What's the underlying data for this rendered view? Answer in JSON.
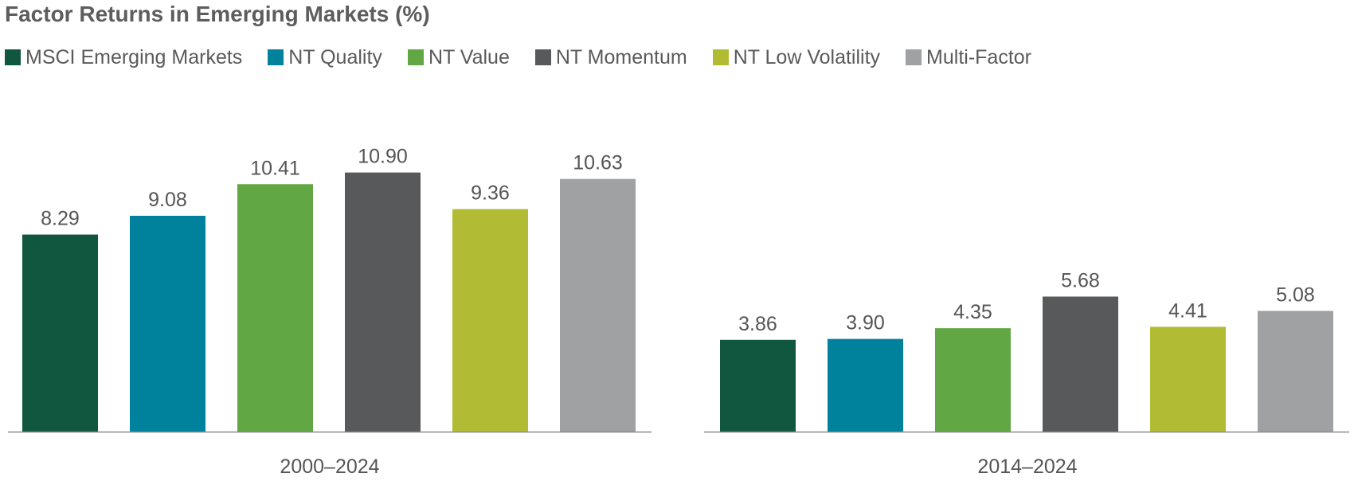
{
  "title": "Factor Returns in Emerging Markets (%)",
  "legend": [
    {
      "label": "MSCI Emerging Markets",
      "color": "#11573f"
    },
    {
      "label": "NT Quality",
      "color": "#00829d"
    },
    {
      "label": "NT Value",
      "color": "#61a844"
    },
    {
      "label": "NT Momentum",
      "color": "#58595b"
    },
    {
      "label": "NT Low Volatility",
      "color": "#b1bc34"
    },
    {
      "label": "Multi-Factor",
      "color": "#a0a1a2"
    }
  ],
  "chart_data": [
    {
      "type": "bar",
      "title": "",
      "xlabel": "2000–2024",
      "ylabel": "",
      "categories": [
        "MSCI Emerging Markets",
        "NT Quality",
        "NT Value",
        "NT Momentum",
        "NT Low Volatility",
        "Multi-Factor"
      ],
      "values": [
        8.29,
        9.08,
        10.41,
        10.9,
        9.36,
        10.63
      ],
      "value_labels": [
        "8.29",
        "9.08",
        "10.41",
        "10.90",
        "9.36",
        "10.63"
      ],
      "ylim": [
        0,
        12
      ],
      "grid": false,
      "legend_position": "top"
    },
    {
      "type": "bar",
      "title": "",
      "xlabel": "2014–2024",
      "ylabel": "",
      "categories": [
        "MSCI Emerging Markets",
        "NT Quality",
        "NT Value",
        "NT Momentum",
        "NT Low Volatility",
        "Multi-Factor"
      ],
      "values": [
        3.86,
        3.9,
        4.35,
        5.68,
        4.41,
        5.08
      ],
      "value_labels": [
        "3.86",
        "3.90",
        "4.35",
        "5.68",
        "4.41",
        "5.08"
      ],
      "ylim": [
        0,
        12
      ],
      "grid": false,
      "legend_position": "top"
    }
  ]
}
